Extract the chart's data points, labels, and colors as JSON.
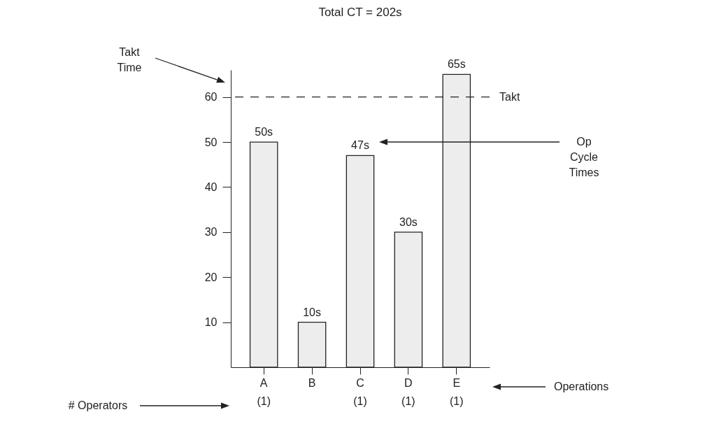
{
  "chart_data": {
    "type": "bar",
    "title": "Total CT = 202s",
    "categories": [
      "A\n(1)",
      "B",
      "C\n(1)",
      "D\n(1)",
      "E\n(1)"
    ],
    "values": [
      50,
      10,
      47,
      30,
      65
    ],
    "value_labels": [
      "50s",
      "10s",
      "47s",
      "30s",
      "65s"
    ],
    "color": "#ededed",
    "ylim": [
      0,
      66
    ],
    "yticks": [
      10,
      20,
      30,
      40,
      50,
      60
    ],
    "ref_lines": [
      {
        "axis": "y",
        "value": 60,
        "label": "Takt",
        "line_style": "dashed"
      }
    ],
    "annotations": [
      "Takt Time",
      "Op Cycle Times",
      "Operations",
      "# Operators"
    ]
  }
}
